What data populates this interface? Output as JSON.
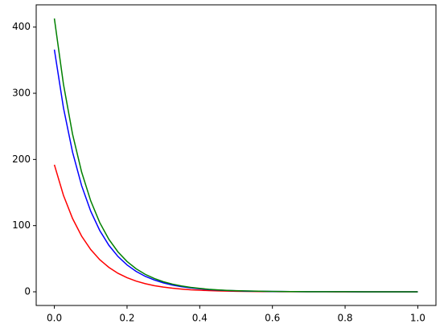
{
  "chart_data": {
    "type": "line",
    "x": [
      0,
      0.025,
      0.05,
      0.075,
      0.1,
      0.125,
      0.15,
      0.175,
      0.2,
      0.225,
      0.25,
      0.275,
      0.3,
      0.325,
      0.35,
      0.375,
      0.4,
      0.425,
      0.45,
      0.475,
      0.5,
      0.525,
      0.55,
      0.575,
      0.6,
      0.625,
      0.65,
      0.675,
      0.7,
      0.725,
      0.75,
      0.775,
      0.8,
      0.825,
      0.85,
      0.875,
      0.9,
      0.925,
      0.95,
      0.975,
      1
    ],
    "series": [
      {
        "color": "#ff0000",
        "values": [
          192,
          145.8,
          110.8,
          84.1,
          63.9,
          48.5,
          36.9,
          28.0,
          21.3,
          16.2,
          12.3,
          9.3,
          7.1,
          5.4,
          4.1,
          3.1,
          2.4,
          1.8,
          1.4,
          1.0,
          0.8,
          0.6,
          0.5,
          0.3,
          0.3,
          0.2,
          0.2,
          0.1,
          0.1,
          0.1,
          0.1,
          0,
          0,
          0,
          0,
          0,
          0,
          0,
          0,
          0,
          0
        ]
      },
      {
        "color": "#0000ff",
        "values": [
          366,
          278.0,
          211.1,
          160.4,
          121.8,
          92.5,
          70.3,
          53.4,
          40.6,
          30.8,
          23.4,
          17.8,
          13.5,
          10.2,
          7.8,
          5.9,
          4.5,
          3.4,
          2.6,
          2.0,
          1.5,
          1.1,
          0.9,
          0.7,
          0.5,
          0.4,
          0.3,
          0.2,
          0.2,
          0.1,
          0.1,
          0.1,
          0.1,
          0,
          0,
          0,
          0,
          0,
          0,
          0,
          0
        ]
      },
      {
        "color": "#008000",
        "values": [
          413,
          313.7,
          238.3,
          181.0,
          137.5,
          104.4,
          79.3,
          60.3,
          45.8,
          34.8,
          26.4,
          20.1,
          15.2,
          11.6,
          8.8,
          6.7,
          5.1,
          3.8,
          2.9,
          2.2,
          1.7,
          1.3,
          1.0,
          0.8,
          0.6,
          0.4,
          0.3,
          0.3,
          0.2,
          0.1,
          0.1,
          0.1,
          0.1,
          0.1,
          0,
          0,
          0,
          0,
          0,
          0,
          0
        ]
      }
    ],
    "xlim": [
      -0.05,
      1.05
    ],
    "ylim": [
      -20.65,
      433.65
    ],
    "xticks": [
      {
        "value": 0,
        "label": "0.0"
      },
      {
        "value": 0.2,
        "label": "0.2"
      },
      {
        "value": 0.4,
        "label": "0.4"
      },
      {
        "value": 0.6,
        "label": "0.6"
      },
      {
        "value": 0.8,
        "label": "0.8"
      },
      {
        "value": 1,
        "label": "1.0"
      }
    ],
    "yticks": [
      0,
      100,
      200,
      300,
      400
    ],
    "grid": false
  }
}
